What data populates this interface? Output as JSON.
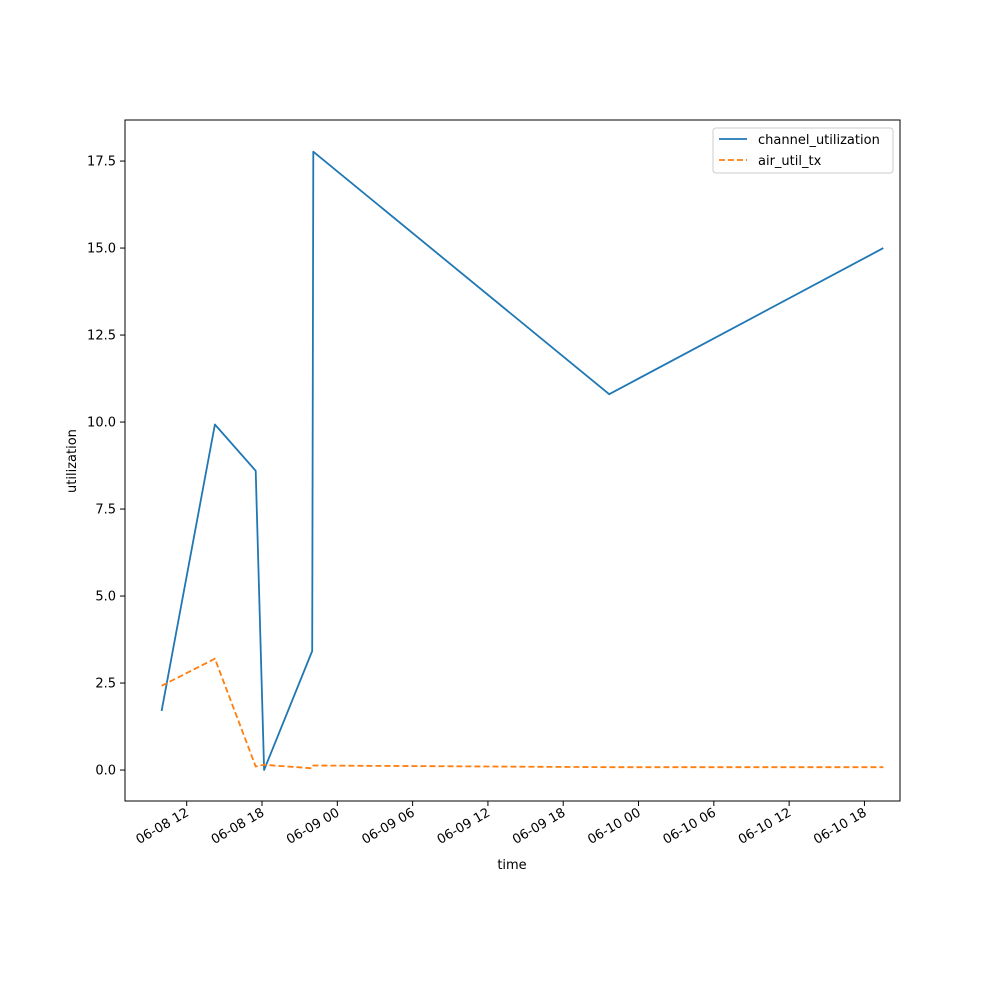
{
  "chart_data": {
    "type": "line",
    "title": "",
    "xlabel": "time",
    "ylabel": "utilization",
    "grid": false,
    "legend_position": "top-right",
    "x_tick_labels": [
      "06-08 12",
      "06-08 18",
      "06-09 00",
      "06-09 06",
      "06-09 12",
      "06-09 18",
      "06-10 00",
      "06-10 06",
      "06-10 12",
      "06-10 18"
    ],
    "x_ticks": [
      "2024-06-08 12:00",
      "2024-06-08 18:00",
      "2024-06-09 00:00",
      "2024-06-09 06:00",
      "2024-06-09 12:00",
      "2024-06-09 18:00",
      "2024-06-10 00:00",
      "2024-06-10 06:00",
      "2024-06-10 12:00",
      "2024-06-10 18:00"
    ],
    "xlim": [
      "2024-06-08 07:05",
      "2024-06-10 20:50"
    ],
    "y_tick_labels": [
      "0.0",
      "2.5",
      "5.0",
      "7.5",
      "10.0",
      "12.5",
      "15.0",
      "17.5"
    ],
    "y_ticks": [
      0,
      2.5,
      5,
      7.5,
      10,
      12.5,
      15,
      17.5
    ],
    "ylim": [
      -0.89,
      18.68
    ],
    "series": [
      {
        "name": "channel_utilization",
        "color": "#1f77b4",
        "dash": "solid",
        "x": [
          "2024-06-08 10:00",
          "2024-06-08 14:15",
          "2024-06-08 17:30",
          "2024-06-08 18:10",
          "2024-06-08 22:00",
          "2024-06-08 22:05",
          "2024-06-09 21:40",
          "2024-06-10 19:30"
        ],
        "y": [
          1.7,
          9.93,
          8.6,
          0.0,
          3.42,
          17.77,
          10.8,
          15.0
        ]
      },
      {
        "name": "air_util_tx",
        "color": "#ff7f0e",
        "dash": "dashed",
        "x": [
          "2024-06-08 10:00",
          "2024-06-08 14:15",
          "2024-06-08 17:30",
          "2024-06-08 18:10",
          "2024-06-08 22:00",
          "2024-06-08 22:05",
          "2024-06-09 21:40",
          "2024-06-10 19:30"
        ],
        "y": [
          2.42,
          3.2,
          0.1,
          0.15,
          0.05,
          0.13,
          0.08,
          0.08
        ]
      }
    ]
  }
}
